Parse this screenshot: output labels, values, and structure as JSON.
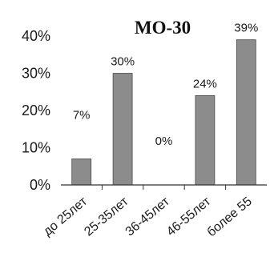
{
  "chart_data": {
    "type": "bar",
    "title": "МО-30",
    "xlabel": "",
    "ylabel": "",
    "categories": [
      "до 25лет",
      "25-35лет",
      "36-45лет",
      "46-55лет",
      "более 55"
    ],
    "values": [
      7,
      30,
      0,
      24,
      39
    ],
    "data_labels": [
      "7%",
      "30%",
      "0%",
      "24%",
      "39%"
    ],
    "ylim": [
      0,
      40
    ],
    "yticks": [
      {
        "value": 0,
        "label": "0%"
      },
      {
        "value": 10,
        "label": "10%"
      },
      {
        "value": 20,
        "label": "20%"
      },
      {
        "value": 30,
        "label": "30%"
      },
      {
        "value": 40,
        "label": "40%"
      }
    ],
    "grid": false,
    "legend": "none",
    "colors": {
      "bar": "#8c8c8c",
      "bar_edge": "#4a4a4a",
      "axis": "#333333"
    }
  }
}
